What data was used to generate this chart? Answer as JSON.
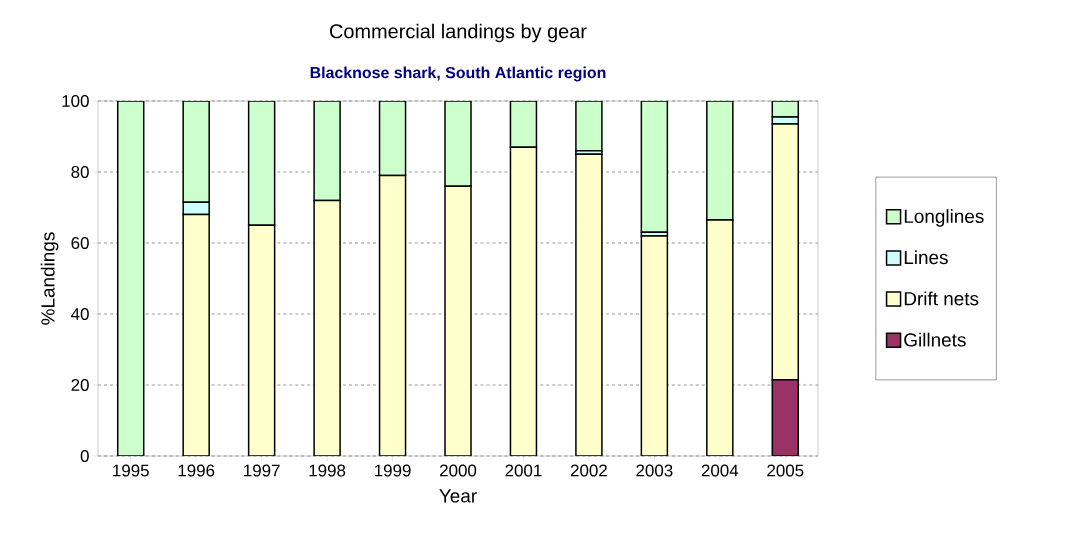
{
  "chart_data": {
    "type": "bar",
    "title": "Commercial landings by gear",
    "subtitle": "Blacknose shark, South Atlantic region",
    "xlabel": "Year",
    "ylabel": "%Landings",
    "categories": [
      "1995",
      "1996",
      "1997",
      "1998",
      "1999",
      "2000",
      "2001",
      "2002",
      "2003",
      "2004",
      "2005"
    ],
    "stacked": true,
    "ylim": [
      0,
      100
    ],
    "yticks": [
      0,
      20,
      40,
      60,
      80,
      100
    ],
    "grid": "y",
    "legend": "right",
    "series": [
      {
        "name": "Gillnets",
        "color": "#993366",
        "values": [
          0,
          0,
          0,
          0,
          0,
          0,
          0,
          0,
          0,
          null,
          21.5
        ]
      },
      {
        "name": "Drift nets",
        "color": "#ffffcc",
        "values": [
          0,
          68,
          65,
          72,
          79,
          76,
          87,
          85,
          62,
          66.5,
          72
        ]
      },
      {
        "name": "Lines",
        "color": "#ccffff",
        "values": [
          0,
          3.5,
          0,
          0,
          0,
          0,
          0,
          1,
          1,
          0,
          2
        ]
      },
      {
        "name": "Longlines",
        "color": "#ccffcc",
        "values": [
          100,
          28.5,
          35,
          28,
          21,
          24,
          13,
          14,
          37,
          33.5,
          4.5
        ]
      }
    ]
  }
}
